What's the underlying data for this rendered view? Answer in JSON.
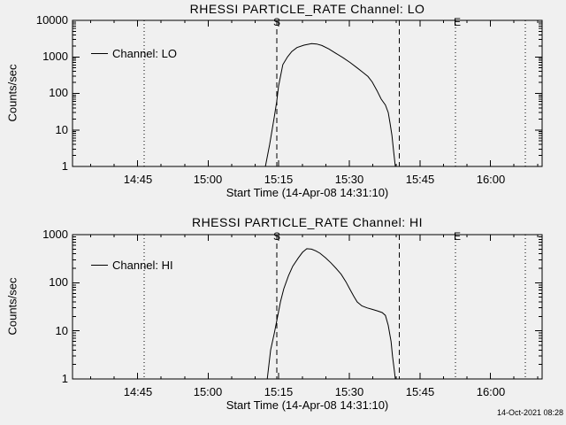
{
  "app": {
    "background": "#f0f0f0",
    "foreground": "#000000"
  },
  "footer": {
    "timestamp": "14-Oct-2021 08:28"
  },
  "chart_data": {
    "type": "line",
    "y_scale": "log",
    "grid": false,
    "shared_x": {
      "xlabel": "Start Time (14-Apr-08 14:31:10)",
      "x_ticks": [
        "14:45",
        "15:00",
        "15:15",
        "15:30",
        "15:45",
        "16:00"
      ],
      "x_start_time": "14:31:10",
      "x_total_minutes": 99.8,
      "x_first_major_tick_minute": 13.83,
      "x_major_tick_step_minutes": 15,
      "x_minor_tick_step_minutes": 5
    },
    "panels": [
      {
        "title": "RHESSI PARTICLE_RATE Channel: LO",
        "legend": "Channel: LO",
        "ylabel": "Counts/sec",
        "ylim": [
          1,
          10000
        ],
        "y_ticks": [
          "10000",
          "1000",
          "100",
          "10",
          "1"
        ],
        "markers": {
          "start_label": "S",
          "end_label": "E",
          "start_minute": 43.4,
          "end_minute": 81.4
        },
        "vlines_dashed_minutes": [
          43.4,
          69.5
        ],
        "vlines_dotted_minutes": [
          15.2,
          81.4,
          96.2
        ],
        "series": {
          "name": "Channel: LO",
          "points": [
            [
              41.0,
              1
            ],
            [
              41.9,
              4
            ],
            [
              42.9,
              23
            ],
            [
              43.4,
              60
            ],
            [
              43.8,
              160
            ],
            [
              44.7,
              615
            ],
            [
              45.7,
              1000
            ],
            [
              46.6,
              1400
            ],
            [
              47.7,
              1800
            ],
            [
              49.2,
              2100
            ],
            [
              50.8,
              2300
            ],
            [
              51.9,
              2250
            ],
            [
              53.0,
              2050
            ],
            [
              54.5,
              1650
            ],
            [
              56.0,
              1250
            ],
            [
              57.5,
              950
            ],
            [
              59.0,
              700
            ],
            [
              60.5,
              500
            ],
            [
              61.7,
              380
            ],
            [
              62.8,
              290
            ],
            [
              63.7,
              205
            ],
            [
              64.7,
              120
            ],
            [
              65.6,
              70
            ],
            [
              66.5,
              48
            ],
            [
              67.1,
              30
            ],
            [
              67.5,
              15
            ],
            [
              67.9,
              7
            ],
            [
              68.2,
              3
            ],
            [
              68.6,
              1
            ]
          ]
        }
      },
      {
        "title": "RHESSI PARTICLE_RATE Channel: HI",
        "legend": "Channel: HI",
        "ylabel": "Counts/sec",
        "ylim": [
          1,
          1000
        ],
        "y_ticks": [
          "1000",
          "100",
          "10",
          "1"
        ],
        "markers": {
          "start_label": "S",
          "end_label": "E",
          "start_minute": 43.4,
          "end_minute": 81.4
        },
        "vlines_dashed_minutes": [
          43.4,
          69.5
        ],
        "vlines_dotted_minutes": [
          15.2,
          81.4,
          96.2
        ],
        "series": {
          "name": "Channel: HI",
          "points": [
            [
              41.4,
              1
            ],
            [
              42.1,
              4
            ],
            [
              42.9,
              9
            ],
            [
              43.4,
              16
            ],
            [
              44.2,
              40
            ],
            [
              44.9,
              75
            ],
            [
              45.9,
              140
            ],
            [
              46.8,
              220
            ],
            [
              48.0,
              330
            ],
            [
              48.9,
              430
            ],
            [
              49.8,
              510
            ],
            [
              50.8,
              500
            ],
            [
              51.7,
              460
            ],
            [
              52.6,
              410
            ],
            [
              53.8,
              330
            ],
            [
              54.9,
              260
            ],
            [
              56.0,
              200
            ],
            [
              57.1,
              150
            ],
            [
              58.1,
              105
            ],
            [
              59.0,
              72
            ],
            [
              59.8,
              52
            ],
            [
              60.5,
              40
            ],
            [
              61.5,
              33
            ],
            [
              62.6,
              30
            ],
            [
              63.7,
              28
            ],
            [
              64.8,
              26
            ],
            [
              65.8,
              24
            ],
            [
              66.5,
              21
            ],
            [
              67.1,
              13
            ],
            [
              67.7,
              6
            ],
            [
              68.0,
              3
            ],
            [
              68.4,
              1.5
            ],
            [
              68.6,
              1
            ]
          ]
        }
      }
    ]
  }
}
